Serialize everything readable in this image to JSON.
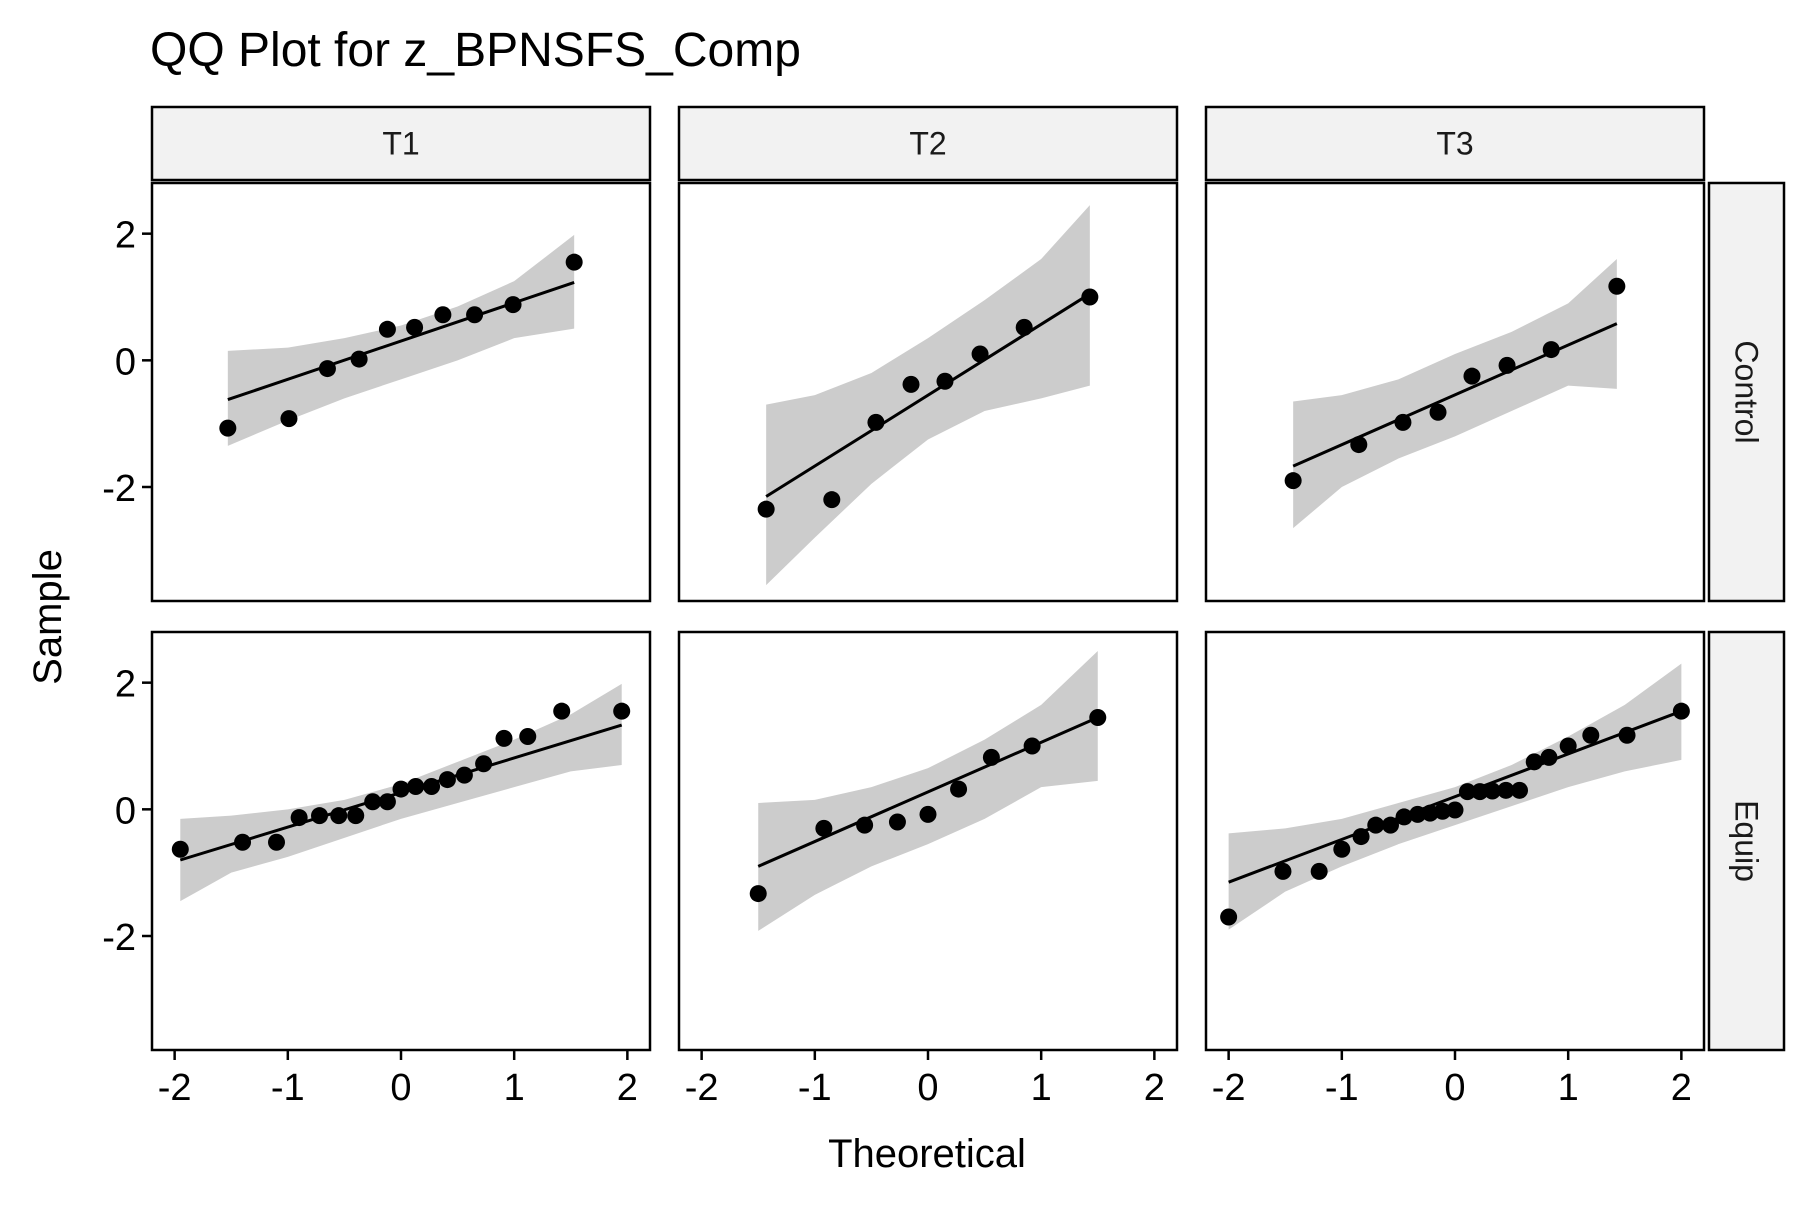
{
  "title": "QQ Plot for z_BPNSFS_Comp",
  "xlabel": "Theoretical",
  "ylabel": "Sample",
  "colors": {
    "band": "#cccccc",
    "strip": "#f2f2f2",
    "point": "#000000",
    "line": "#000000"
  },
  "chart_data": {
    "type": "scatter",
    "title": "QQ Plot for z_BPNSFS_Comp",
    "xlabel": "Theoretical",
    "ylabel": "Sample",
    "xlim": [
      -2.2,
      2.2
    ],
    "ylim": [
      -3.8,
      2.8
    ],
    "x_ticks": [
      -2,
      -1,
      0,
      1,
      2
    ],
    "y_ticks": [
      -2,
      0,
      2
    ],
    "col_labels": [
      "T1",
      "T2",
      "T3"
    ],
    "row_labels": [
      "Control",
      "Equip"
    ],
    "grid": false,
    "panels": [
      {
        "col": "T1",
        "row": "Control",
        "points": [
          [
            -1.53,
            -1.07
          ],
          [
            -0.99,
            -0.92
          ],
          [
            -0.65,
            -0.13
          ],
          [
            -0.37,
            0.02
          ],
          [
            -0.12,
            0.49
          ],
          [
            0.12,
            0.52
          ],
          [
            0.37,
            0.72
          ],
          [
            0.65,
            0.72
          ],
          [
            0.99,
            0.88
          ],
          [
            1.53,
            1.55
          ]
        ],
        "line": [
          [
            -1.53,
            -0.62
          ],
          [
            1.53,
            1.23
          ]
        ],
        "band": {
          "x": [
            -1.53,
            -1.0,
            -0.5,
            0,
            0.5,
            1.0,
            1.53
          ],
          "lower": [
            -1.35,
            -0.95,
            -0.6,
            -0.3,
            0.0,
            0.35,
            0.5
          ],
          "upper": [
            0.15,
            0.2,
            0.35,
            0.55,
            0.85,
            1.25,
            1.98
          ]
        }
      },
      {
        "col": "T2",
        "row": "Control",
        "points": [
          [
            -1.43,
            -2.35
          ],
          [
            -0.85,
            -2.2
          ],
          [
            -0.46,
            -0.98
          ],
          [
            -0.15,
            -0.38
          ],
          [
            0.15,
            -0.33
          ],
          [
            0.46,
            0.1
          ],
          [
            0.85,
            0.52
          ],
          [
            1.43,
            1.0
          ]
        ],
        "line": [
          [
            -1.43,
            -2.15
          ],
          [
            1.43,
            1.05
          ]
        ],
        "band": {
          "x": [
            -1.43,
            -1.0,
            -0.5,
            0,
            0.5,
            1.0,
            1.43
          ],
          "lower": [
            -3.55,
            -2.8,
            -1.95,
            -1.25,
            -0.8,
            -0.6,
            -0.4
          ],
          "upper": [
            -0.7,
            -0.55,
            -0.2,
            0.35,
            0.95,
            1.6,
            2.45
          ]
        }
      },
      {
        "col": "T3",
        "row": "Control",
        "points": [
          [
            -1.43,
            -1.9
          ],
          [
            -0.85,
            -1.33
          ],
          [
            -0.46,
            -0.98
          ],
          [
            -0.15,
            -0.82
          ],
          [
            0.15,
            -0.25
          ],
          [
            0.46,
            -0.08
          ],
          [
            0.85,
            0.17
          ],
          [
            1.43,
            1.17
          ]
        ],
        "line": [
          [
            -1.43,
            -1.67
          ],
          [
            1.43,
            0.58
          ]
        ],
        "band": {
          "x": [
            -1.43,
            -1.0,
            -0.5,
            0,
            0.5,
            1.0,
            1.43
          ],
          "lower": [
            -2.65,
            -2.0,
            -1.55,
            -1.2,
            -0.8,
            -0.4,
            -0.45
          ],
          "upper": [
            -0.65,
            -0.55,
            -0.3,
            0.1,
            0.45,
            0.9,
            1.6
          ]
        }
      },
      {
        "col": "T1",
        "row": "Equip",
        "points": [
          [
            -1.95,
            -0.63
          ],
          [
            -1.4,
            -0.52
          ],
          [
            -1.1,
            -0.52
          ],
          [
            -0.9,
            -0.13
          ],
          [
            -0.72,
            -0.1
          ],
          [
            -0.55,
            -0.1
          ],
          [
            -0.4,
            -0.1
          ],
          [
            -0.25,
            0.12
          ],
          [
            -0.12,
            0.12
          ],
          [
            0.0,
            0.32
          ],
          [
            0.13,
            0.36
          ],
          [
            0.27,
            0.36
          ],
          [
            0.41,
            0.47
          ],
          [
            0.56,
            0.54
          ],
          [
            0.73,
            0.72
          ],
          [
            0.91,
            1.12
          ],
          [
            1.12,
            1.15
          ],
          [
            1.42,
            1.55
          ],
          [
            1.95,
            1.55
          ]
        ],
        "line": [
          [
            -1.95,
            -0.8
          ],
          [
            1.95,
            1.33
          ]
        ],
        "band": {
          "x": [
            -1.95,
            -1.5,
            -1.0,
            -0.5,
            0,
            0.5,
            1.0,
            1.5,
            1.95
          ],
          "lower": [
            -1.45,
            -1.0,
            -0.75,
            -0.45,
            -0.15,
            0.1,
            0.35,
            0.6,
            0.7
          ],
          "upper": [
            -0.15,
            -0.1,
            0.0,
            0.15,
            0.4,
            0.75,
            1.1,
            1.5,
            1.98
          ]
        }
      },
      {
        "col": "T2",
        "row": "Equip",
        "points": [
          [
            -1.5,
            -1.33
          ],
          [
            -0.92,
            -0.3
          ],
          [
            -0.56,
            -0.25
          ],
          [
            -0.27,
            -0.2
          ],
          [
            0.0,
            -0.08
          ],
          [
            0.27,
            0.32
          ],
          [
            0.56,
            0.82
          ],
          [
            0.92,
            1.0
          ],
          [
            1.5,
            1.45
          ]
        ],
        "line": [
          [
            -1.5,
            -0.9
          ],
          [
            1.5,
            1.45
          ]
        ],
        "band": {
          "x": [
            -1.5,
            -1.0,
            -0.5,
            0,
            0.5,
            1.0,
            1.5
          ],
          "lower": [
            -1.92,
            -1.35,
            -0.9,
            -0.55,
            -0.15,
            0.35,
            0.45
          ],
          "upper": [
            0.1,
            0.15,
            0.35,
            0.65,
            1.1,
            1.65,
            2.5
          ]
        }
      },
      {
        "col": "T3",
        "row": "Equip",
        "points": [
          [
            -2.0,
            -1.7
          ],
          [
            -1.52,
            -0.98
          ],
          [
            -1.2,
            -0.98
          ],
          [
            -1.0,
            -0.63
          ],
          [
            -0.83,
            -0.43
          ],
          [
            -0.7,
            -0.25
          ],
          [
            -0.57,
            -0.25
          ],
          [
            -0.45,
            -0.12
          ],
          [
            -0.33,
            -0.08
          ],
          [
            -0.22,
            -0.06
          ],
          [
            -0.11,
            -0.03
          ],
          [
            0.0,
            -0.01
          ],
          [
            0.11,
            0.28
          ],
          [
            0.22,
            0.28
          ],
          [
            0.33,
            0.29
          ],
          [
            0.45,
            0.3
          ],
          [
            0.57,
            0.3
          ],
          [
            0.7,
            0.75
          ],
          [
            0.83,
            0.82
          ],
          [
            1.0,
            1.0
          ],
          [
            1.2,
            1.17
          ],
          [
            1.52,
            1.17
          ],
          [
            2.0,
            1.55
          ]
        ],
        "line": [
          [
            -2.0,
            -1.15
          ],
          [
            2.0,
            1.55
          ]
        ],
        "band": {
          "x": [
            -2.0,
            -1.5,
            -1.0,
            -0.5,
            0,
            0.5,
            1.0,
            1.5,
            2.0
          ],
          "lower": [
            -1.9,
            -1.3,
            -0.9,
            -0.55,
            -0.25,
            0.05,
            0.35,
            0.6,
            0.78
          ],
          "upper": [
            -0.38,
            -0.3,
            -0.15,
            0.1,
            0.35,
            0.7,
            1.15,
            1.65,
            2.3
          ]
        }
      }
    ]
  }
}
